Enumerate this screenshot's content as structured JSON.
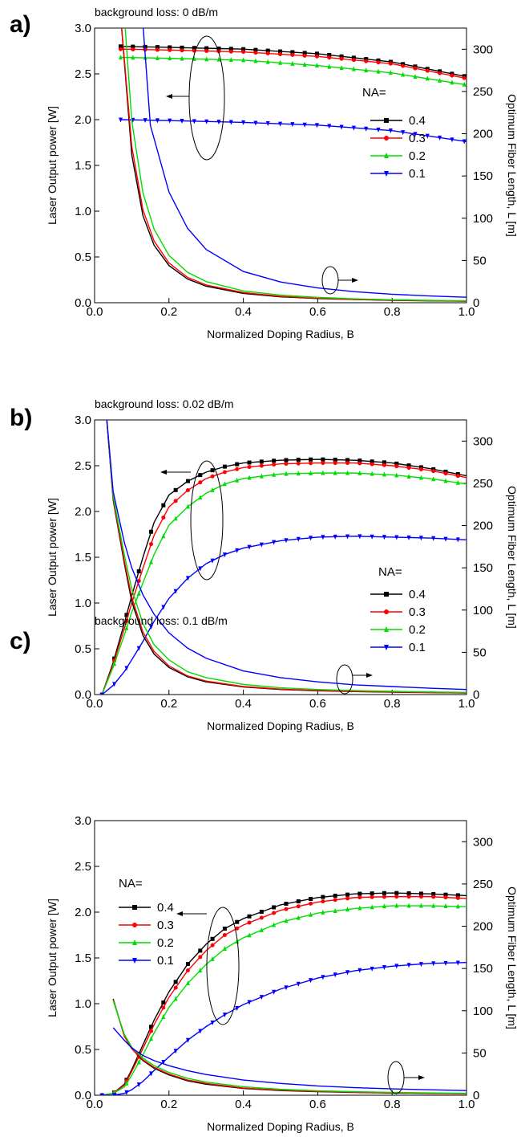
{
  "chart_data": [
    {
      "type": "line",
      "panel_label": "a)",
      "note": "background loss: 0 dB/m",
      "xlabel": "Normalized Doping Radius, B",
      "ylabel": "Laser Output power [W]",
      "y2label": "Optimum Fiber Length, L [m]",
      "xlim": [
        0.0,
        1.0
      ],
      "ylim": [
        0.0,
        3.0
      ],
      "y2lim": [
        0,
        325
      ],
      "xticks": [
        "0.0",
        "0.2",
        "0.4",
        "0.6",
        "0.8",
        "1.0"
      ],
      "yticks": [
        "0.0",
        "0.5",
        "1.0",
        "1.5",
        "2.0",
        "2.5",
        "3.0"
      ],
      "y2ticks": [
        "0",
        "50",
        "100",
        "150",
        "200",
        "250",
        "300"
      ],
      "legend_title": "NA=",
      "legend_position": "center-right",
      "series": [
        {
          "name": "0.4",
          "color": "#000000",
          "marker": "square",
          "axis": "left",
          "x": [
            0.07,
            0.2,
            0.4,
            0.6,
            0.8,
            1.0
          ],
          "y": [
            2.8,
            2.79,
            2.77,
            2.72,
            2.63,
            2.47
          ]
        },
        {
          "name": "0.3",
          "color": "#ff0000",
          "marker": "circle",
          "axis": "left",
          "x": [
            0.07,
            0.2,
            0.4,
            0.6,
            0.8,
            1.0
          ],
          "y": [
            2.77,
            2.76,
            2.74,
            2.69,
            2.61,
            2.45
          ]
        },
        {
          "name": "0.2",
          "color": "#00dd00",
          "marker": "triangle-up",
          "axis": "left",
          "x": [
            0.07,
            0.2,
            0.4,
            0.6,
            0.8,
            1.0
          ],
          "y": [
            2.68,
            2.67,
            2.65,
            2.59,
            2.51,
            2.38
          ]
        },
        {
          "name": "0.1",
          "color": "#0000ff",
          "marker": "triangle-down",
          "axis": "left",
          "x": [
            0.07,
            0.2,
            0.4,
            0.6,
            0.8,
            1.0
          ],
          "y": [
            2.0,
            1.99,
            1.97,
            1.94,
            1.88,
            1.76
          ]
        },
        {
          "name": "0.4",
          "color": "#000000",
          "marker": "none",
          "axis": "right",
          "x": [
            0.07,
            0.1,
            0.13,
            0.16,
            0.2,
            0.25,
            0.3,
            0.4,
            0.5,
            0.6,
            0.7,
            0.8,
            0.9,
            1.0
          ],
          "y": [
            340,
            175,
            103,
            68,
            44,
            28,
            19.5,
            11,
            7,
            5,
            3.7,
            2.8,
            2.2,
            1.8
          ]
        },
        {
          "name": "0.3",
          "color": "#ff0000",
          "marker": "none",
          "axis": "right",
          "x": [
            0.07,
            0.1,
            0.13,
            0.16,
            0.2,
            0.25,
            0.3,
            0.4,
            0.5,
            0.6,
            0.7,
            0.8,
            0.9,
            1.0
          ],
          "y": [
            340,
            185,
            110,
            73,
            47,
            30,
            21,
            12,
            7.5,
            5.3,
            3.9,
            3,
            2.4,
            1.9
          ]
        },
        {
          "name": "0.2",
          "color": "#00dd00",
          "marker": "none",
          "axis": "right",
          "x": [
            0.08,
            0.1,
            0.13,
            0.16,
            0.2,
            0.25,
            0.3,
            0.4,
            0.5,
            0.6,
            0.7,
            0.8,
            0.9,
            1.0
          ],
          "y": [
            340,
            215,
            130,
            87,
            56,
            36,
            25,
            14,
            9,
            6.3,
            4.6,
            3.5,
            2.8,
            2.3
          ]
        },
        {
          "name": "0.1",
          "color": "#0000ff",
          "marker": "none",
          "axis": "right",
          "x": [
            0.13,
            0.15,
            0.2,
            0.25,
            0.3,
            0.4,
            0.5,
            0.6,
            0.7,
            0.8,
            0.9,
            1.0
          ],
          "y": [
            330,
            210,
            131,
            88,
            63,
            37,
            24.5,
            17.5,
            13,
            10,
            8,
            6.5
          ]
        }
      ],
      "annotations": [
        "arrow pointing to left axis",
        "arrow pointing to right axis"
      ]
    },
    {
      "type": "line",
      "panel_label": "b)",
      "note": "background loss: 0.02 dB/m",
      "xlabel": "Normalized Doping Radius, B",
      "ylabel": "Laser Output power [W]",
      "y2label": "Optimum Fiber Length, L [m]",
      "xlim": [
        0.0,
        1.0
      ],
      "ylim": [
        0.0,
        3.0
      ],
      "y2lim": [
        0,
        325
      ],
      "xticks": [
        "0.0",
        "0.2",
        "0.4",
        "0.6",
        "0.8",
        "1.0"
      ],
      "yticks": [
        "0.0",
        "0.5",
        "1.0",
        "1.5",
        "2.0",
        "2.5",
        "3.0"
      ],
      "y2ticks": [
        "0",
        "50",
        "100",
        "150",
        "200",
        "250",
        "300"
      ],
      "legend_title": "NA=",
      "legend_position": "center-right",
      "series": [
        {
          "name": "0.4",
          "color": "#000000",
          "marker": "square",
          "axis": "left",
          "x": [
            0.02,
            0.05,
            0.08,
            0.1,
            0.13,
            0.16,
            0.2,
            0.25,
            0.3,
            0.35,
            0.4,
            0.5,
            0.6,
            0.7,
            0.8,
            0.9,
            1.0
          ],
          "y": [
            0.0,
            0.35,
            0.78,
            1.08,
            1.5,
            1.88,
            2.18,
            2.33,
            2.43,
            2.49,
            2.53,
            2.56,
            2.57,
            2.56,
            2.53,
            2.47,
            2.39
          ]
        },
        {
          "name": "0.3",
          "color": "#ff0000",
          "marker": "circle",
          "axis": "left",
          "x": [
            0.02,
            0.05,
            0.08,
            0.1,
            0.13,
            0.16,
            0.2,
            0.25,
            0.3,
            0.35,
            0.4,
            0.5,
            0.6,
            0.7,
            0.8,
            0.9,
            1.0
          ],
          "y": [
            0.0,
            0.33,
            0.72,
            1.0,
            1.38,
            1.74,
            2.05,
            2.23,
            2.36,
            2.43,
            2.48,
            2.52,
            2.53,
            2.53,
            2.5,
            2.45,
            2.37
          ]
        },
        {
          "name": "0.2",
          "color": "#00dd00",
          "marker": "triangle-up",
          "axis": "left",
          "x": [
            0.02,
            0.05,
            0.08,
            0.1,
            0.13,
            0.16,
            0.2,
            0.25,
            0.3,
            0.35,
            0.4,
            0.5,
            0.6,
            0.7,
            0.8,
            0.9,
            1.0
          ],
          "y": [
            0.0,
            0.3,
            0.65,
            0.9,
            1.22,
            1.53,
            1.85,
            2.05,
            2.2,
            2.3,
            2.36,
            2.41,
            2.42,
            2.42,
            2.4,
            2.36,
            2.3
          ]
        },
        {
          "name": "0.1",
          "color": "#0000ff",
          "marker": "triangle-down",
          "axis": "left",
          "x": [
            0.02,
            0.05,
            0.08,
            0.1,
            0.13,
            0.16,
            0.2,
            0.25,
            0.3,
            0.35,
            0.4,
            0.5,
            0.6,
            0.7,
            0.8,
            0.9,
            1.0
          ],
          "y": [
            0.0,
            0.1,
            0.25,
            0.38,
            0.58,
            0.8,
            1.05,
            1.27,
            1.43,
            1.53,
            1.6,
            1.68,
            1.72,
            1.73,
            1.72,
            1.71,
            1.69
          ]
        },
        {
          "name": "0.4",
          "color": "#000000",
          "marker": "none",
          "axis": "right",
          "x": [
            0.03,
            0.05,
            0.08,
            0.1,
            0.13,
            0.16,
            0.2,
            0.25,
            0.3,
            0.4,
            0.5,
            0.6,
            0.7,
            0.8,
            0.9,
            1.0
          ],
          "y": [
            340,
            230,
            155,
            110,
            70,
            48,
            32,
            21,
            15,
            9,
            6,
            4.5,
            3.5,
            2.8,
            2.3,
            1.9
          ]
        },
        {
          "name": "0.3",
          "color": "#ff0000",
          "marker": "none",
          "axis": "right",
          "x": [
            0.03,
            0.05,
            0.08,
            0.1,
            0.13,
            0.16,
            0.2,
            0.25,
            0.3,
            0.4,
            0.5,
            0.6,
            0.7,
            0.8,
            0.9,
            1.0
          ],
          "y": [
            340,
            232,
            158,
            115,
            74,
            51,
            34,
            22,
            16,
            9.5,
            6.5,
            4.8,
            3.7,
            3,
            2.4,
            2
          ]
        },
        {
          "name": "0.2",
          "color": "#00dd00",
          "marker": "none",
          "axis": "right",
          "x": [
            0.03,
            0.05,
            0.08,
            0.1,
            0.13,
            0.16,
            0.2,
            0.25,
            0.3,
            0.4,
            0.5,
            0.6,
            0.7,
            0.8,
            0.9,
            1.0
          ],
          "y": [
            340,
            235,
            165,
            125,
            84,
            59,
            41,
            27,
            20,
            12,
            8,
            6,
            4.7,
            3.8,
            3.1,
            2.6
          ]
        },
        {
          "name": "0.1",
          "color": "#0000ff",
          "marker": "none",
          "axis": "right",
          "x": [
            0.03,
            0.05,
            0.08,
            0.1,
            0.13,
            0.16,
            0.2,
            0.25,
            0.3,
            0.4,
            0.5,
            0.6,
            0.7,
            0.8,
            0.9,
            1.0
          ],
          "y": [
            340,
            240,
            180,
            150,
            118,
            95,
            73,
            55,
            43,
            28,
            20,
            15,
            11.5,
            9.5,
            7.5,
            6
          ]
        }
      ],
      "annotations": [
        "arrow pointing to left axis",
        "arrow pointing to right axis"
      ]
    },
    {
      "type": "line",
      "panel_label": "c)",
      "note": "background loss: 0.1 dB/m",
      "xlabel": "Normalized Doping Radius, B",
      "ylabel": "Laser Output power [W]",
      "y2label": "Optimum Fiber Length, L [m]",
      "xlim": [
        0.0,
        1.0
      ],
      "ylim": [
        0.0,
        3.0
      ],
      "y2lim": [
        0,
        325
      ],
      "xticks": [
        "0.0",
        "0.2",
        "0.4",
        "0.6",
        "0.8",
        "1.0"
      ],
      "yticks": [
        "0.0",
        "0.5",
        "1.0",
        "1.5",
        "2.0",
        "2.5",
        "3.0"
      ],
      "y2ticks": [
        "0",
        "50",
        "100",
        "150",
        "200",
        "250",
        "300"
      ],
      "legend_title": "NA=",
      "legend_position": "top-left",
      "series": [
        {
          "name": "0.4",
          "color": "#000000",
          "marker": "square",
          "axis": "left",
          "x": [
            0.02,
            0.05,
            0.08,
            0.1,
            0.13,
            0.16,
            0.2,
            0.25,
            0.3,
            0.35,
            0.4,
            0.5,
            0.6,
            0.7,
            0.8,
            0.9,
            1.0
          ],
          "y": [
            0.0,
            0.02,
            0.12,
            0.28,
            0.55,
            0.82,
            1.13,
            1.43,
            1.65,
            1.82,
            1.93,
            2.08,
            2.16,
            2.2,
            2.21,
            2.2,
            2.18
          ]
        },
        {
          "name": "0.3",
          "color": "#ff0000",
          "marker": "circle",
          "axis": "left",
          "x": [
            0.02,
            0.05,
            0.08,
            0.1,
            0.13,
            0.16,
            0.2,
            0.25,
            0.3,
            0.35,
            0.4,
            0.5,
            0.6,
            0.7,
            0.8,
            0.9,
            1.0
          ],
          "y": [
            0.0,
            0.02,
            0.11,
            0.26,
            0.51,
            0.77,
            1.07,
            1.36,
            1.58,
            1.75,
            1.86,
            2.02,
            2.11,
            2.16,
            2.17,
            2.17,
            2.15
          ]
        },
        {
          "name": "0.2",
          "color": "#00dd00",
          "marker": "triangle-up",
          "axis": "left",
          "x": [
            0.02,
            0.05,
            0.08,
            0.1,
            0.13,
            0.16,
            0.2,
            0.25,
            0.3,
            0.35,
            0.4,
            0.5,
            0.6,
            0.7,
            0.8,
            0.9,
            1.0
          ],
          "y": [
            0.0,
            0.02,
            0.09,
            0.22,
            0.44,
            0.68,
            0.96,
            1.22,
            1.43,
            1.6,
            1.72,
            1.89,
            1.99,
            2.04,
            2.07,
            2.07,
            2.06
          ]
        },
        {
          "name": "0.1",
          "color": "#0000ff",
          "marker": "triangle-down",
          "axis": "left",
          "x": [
            0.02,
            0.05,
            0.08,
            0.1,
            0.13,
            0.16,
            0.2,
            0.25,
            0.3,
            0.35,
            0.4,
            0.5,
            0.6,
            0.7,
            0.8,
            0.9,
            1.0
          ],
          "y": [
            0.0,
            0.0,
            0.02,
            0.06,
            0.15,
            0.27,
            0.42,
            0.6,
            0.75,
            0.88,
            0.99,
            1.16,
            1.28,
            1.36,
            1.41,
            1.44,
            1.45
          ]
        },
        {
          "name": "0.4",
          "color": "#000000",
          "marker": "none",
          "axis": "right",
          "x": [
            0.05,
            0.08,
            0.1,
            0.13,
            0.16,
            0.2,
            0.25,
            0.3,
            0.4,
            0.5,
            0.6,
            0.7,
            0.8,
            0.9,
            1.0
          ],
          "y": [
            114,
            70,
            55,
            41,
            32,
            24,
            17,
            13,
            8,
            5.5,
            4.2,
            3.3,
            2.6,
            2.1,
            1.8
          ]
        },
        {
          "name": "0.3",
          "color": "#ff0000",
          "marker": "none",
          "axis": "right",
          "x": [
            0.05,
            0.08,
            0.1,
            0.13,
            0.16,
            0.2,
            0.25,
            0.3,
            0.4,
            0.5,
            0.6,
            0.7,
            0.8,
            0.9,
            1.0
          ],
          "y": [
            113,
            70,
            55,
            42,
            33,
            25,
            18,
            14,
            8.5,
            6,
            4.5,
            3.5,
            2.8,
            2.3,
            1.9
          ]
        },
        {
          "name": "0.2",
          "color": "#00dd00",
          "marker": "none",
          "axis": "right",
          "x": [
            0.05,
            0.08,
            0.1,
            0.13,
            0.16,
            0.2,
            0.25,
            0.3,
            0.4,
            0.5,
            0.6,
            0.7,
            0.8,
            0.9,
            1.0
          ],
          "y": [
            112,
            72,
            57,
            44,
            35,
            27,
            20,
            15.5,
            10,
            7,
            5.3,
            4.2,
            3.4,
            2.8,
            2.3
          ]
        },
        {
          "name": "0.1",
          "color": "#0000ff",
          "marker": "none",
          "axis": "right",
          "x": [
            0.05,
            0.08,
            0.1,
            0.13,
            0.16,
            0.2,
            0.25,
            0.3,
            0.4,
            0.5,
            0.6,
            0.7,
            0.8,
            0.9,
            1.0
          ],
          "y": [
            80,
            65,
            56,
            47,
            41,
            35,
            29,
            24.5,
            18,
            14,
            11,
            9,
            7.5,
            6.5,
            5.5
          ]
        }
      ],
      "annotations": [
        "arrow pointing to left axis",
        "arrow pointing to right axis"
      ]
    }
  ]
}
